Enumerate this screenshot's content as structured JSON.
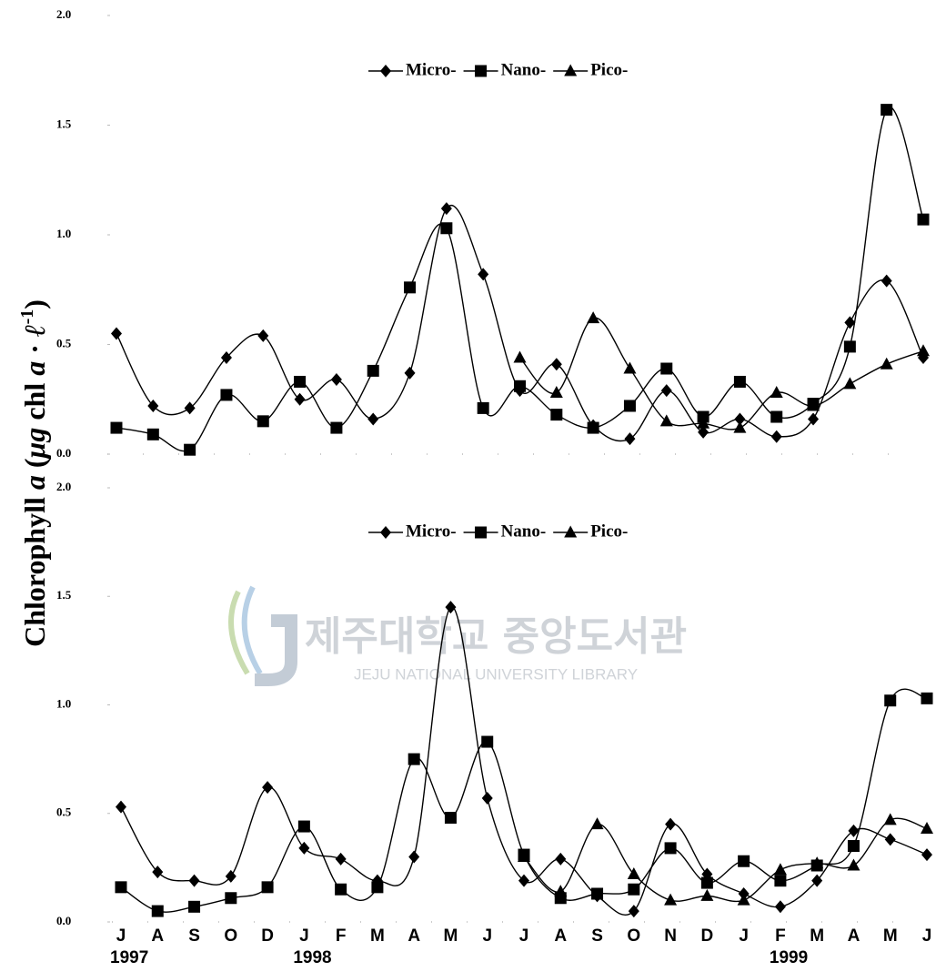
{
  "y_label": [
    "Chlorophyll ",
    "a",
    " (",
    "μg",
    " chl ",
    "a",
    " · ",
    "ℓ",
    "-1",
    ")"
  ],
  "watermark": {
    "title": "제주대학교 중앙도서관",
    "subtitle": "JEJU NATIONAL UNIVERSITY LIBRARY"
  },
  "chart_data": [
    {
      "type": "line",
      "ylim": [
        0,
        2
      ],
      "yticks": [
        {
          "value": 0,
          "label": "0.0"
        },
        0.5,
        {
          "value": 1,
          "label": "1.0"
        },
        1.5,
        {
          "value": 2,
          "label": "2.0"
        }
      ],
      "series": [
        {
          "name": "Micro-",
          "color": "#000000",
          "marker": "diamond",
          "values": [
            0.55,
            0.22,
            0.21,
            0.44,
            0.54,
            0.25,
            0.34,
            0.16,
            0.37,
            1.12,
            0.82,
            0.29,
            0.41,
            0.13,
            0.07,
            0.29,
            0.1,
            0.16,
            0.08,
            0.16,
            0.6,
            0.79,
            0.44
          ]
        },
        {
          "name": "Nano-",
          "color": "#000000",
          "marker": "square",
          "values": [
            0.12,
            0.09,
            0.02,
            0.27,
            0.15,
            0.33,
            0.12,
            0.38,
            0.76,
            1.03,
            0.21,
            0.31,
            0.18,
            0.12,
            0.22,
            0.39,
            0.17,
            0.33,
            0.17,
            0.23,
            0.49,
            1.57,
            1.07
          ]
        },
        {
          "name": "Pico-",
          "color": "#000000",
          "marker": "triangle",
          "values": [
            null,
            null,
            null,
            null,
            null,
            null,
            null,
            null,
            null,
            null,
            null,
            0.44,
            0.28,
            0.62,
            0.39,
            0.15,
            0.14,
            0.12,
            0.28,
            0.22,
            0.32,
            0.41,
            0.47
          ]
        }
      ]
    },
    {
      "type": "line",
      "categories": [
        "J",
        "A",
        "S",
        "O",
        "D",
        "J",
        "F",
        "M",
        "A",
        "M",
        "J",
        "J",
        "A",
        "S",
        "O",
        "N",
        "D",
        "J",
        "F",
        "M",
        "A",
        "M",
        "J"
      ],
      "years": [
        "1997",
        null,
        null,
        null,
        null,
        "1998",
        null,
        null,
        null,
        null,
        null,
        null,
        null,
        null,
        null,
        null,
        null,
        null,
        "1999",
        null,
        null,
        null,
        null
      ],
      "ylim": [
        0,
        2
      ],
      "yticks": [
        {
          "value": 0,
          "label": "0.0"
        },
        0.5,
        {
          "value": 1,
          "label": "1.0"
        },
        1.5,
        {
          "value": 2,
          "label": "2.0"
        }
      ],
      "series": [
        {
          "name": "Micro-",
          "color": "#000000",
          "marker": "diamond",
          "values": [
            0.53,
            0.23,
            0.19,
            0.21,
            0.62,
            0.34,
            0.29,
            0.19,
            0.3,
            1.45,
            0.57,
            0.19,
            0.29,
            0.12,
            0.05,
            0.45,
            0.22,
            0.13,
            0.07,
            0.19,
            0.42,
            0.38,
            0.31
          ]
        },
        {
          "name": "Nano-",
          "color": "#000000",
          "marker": "square",
          "values": [
            0.16,
            0.05,
            0.07,
            0.11,
            0.16,
            0.44,
            0.15,
            0.16,
            0.75,
            0.48,
            0.83,
            0.31,
            0.11,
            0.13,
            0.15,
            0.34,
            0.18,
            0.28,
            0.19,
            0.26,
            0.35,
            1.02,
            1.03
          ]
        },
        {
          "name": "Pico-",
          "color": "#000000",
          "marker": "triangle",
          "values": [
            null,
            null,
            null,
            null,
            null,
            null,
            null,
            null,
            null,
            null,
            null,
            0.3,
            0.14,
            0.45,
            0.22,
            0.1,
            0.12,
            0.1,
            0.24,
            0.27,
            0.26,
            0.47,
            0.43
          ]
        }
      ]
    }
  ]
}
